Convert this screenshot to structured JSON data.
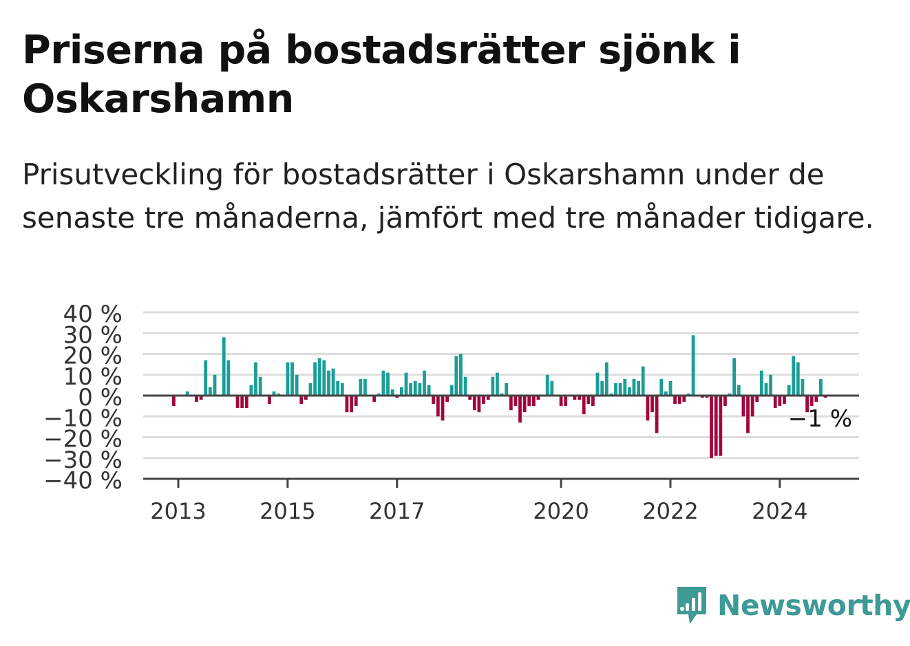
{
  "title": "Priserna på bostadsrätter sjönk i Oskarshamn",
  "subtitle": "Prisutveckling för bostadsrätter i Oskarshamn under de senaste tre månaderna, jämfört med tre månader tidigare.",
  "brand": {
    "name": "Newsworthy",
    "icon": "newsworthy-logo-icon"
  },
  "colors": {
    "positive": "#1a9e96",
    "negative": "#a0073f",
    "grid": "#dddddd",
    "axis": "#444444",
    "brand": "#3d9a95"
  },
  "chart_data": {
    "type": "bar",
    "title": "Priserna på bostadsrätter sjönk i Oskarshamn",
    "subtitle": "Prisutveckling för bostadsrätter i Oskarshamn under de senaste tre månaderna, jämfört med tre månader tidigare.",
    "xlabel": "",
    "ylabel": "",
    "ylim": [
      -40,
      40
    ],
    "y_ticks": [
      {
        "value": 40,
        "label": "40 %"
      },
      {
        "value": 30,
        "label": "30 %"
      },
      {
        "value": 20,
        "label": "20 %"
      },
      {
        "value": 10,
        "label": "10 %"
      },
      {
        "value": 0,
        "label": "0 %"
      },
      {
        "value": -10,
        "label": "−10 %"
      },
      {
        "value": -20,
        "label": "−20 %"
      },
      {
        "value": -30,
        "label": "−30 %"
      },
      {
        "value": -40,
        "label": "−40 %"
      }
    ],
    "x_ticks": [
      {
        "date": "2013-01",
        "label": "2013"
      },
      {
        "date": "2015-01",
        "label": "2015"
      },
      {
        "date": "2017-01",
        "label": "2017"
      },
      {
        "date": "2020-01",
        "label": "2020"
      },
      {
        "date": "2022-01",
        "label": "2022"
      },
      {
        "date": "2024-01",
        "label": "2024"
      }
    ],
    "grid": true,
    "legend": "none",
    "end_label": "−1 %",
    "series": [
      {
        "values": [
          {
            "x": "2012-12",
            "y": -5
          },
          {
            "x": "2013-03",
            "y": 2
          },
          {
            "x": "2013-05",
            "y": -3
          },
          {
            "x": "2013-06",
            "y": -2
          },
          {
            "x": "2013-07",
            "y": 17
          },
          {
            "x": "2013-08",
            "y": 4
          },
          {
            "x": "2013-09",
            "y": 10
          },
          {
            "x": "2013-11",
            "y": 28
          },
          {
            "x": "2013-12",
            "y": 17
          },
          {
            "x": "2014-02",
            "y": -6
          },
          {
            "x": "2014-03",
            "y": -6
          },
          {
            "x": "2014-04",
            "y": -6
          },
          {
            "x": "2014-05",
            "y": 5
          },
          {
            "x": "2014-06",
            "y": 16
          },
          {
            "x": "2014-07",
            "y": 9
          },
          {
            "x": "2014-09",
            "y": -4
          },
          {
            "x": "2014-10",
            "y": 2
          },
          {
            "x": "2014-11",
            "y": 1
          },
          {
            "x": "2015-01",
            "y": 16
          },
          {
            "x": "2015-02",
            "y": 16
          },
          {
            "x": "2015-03",
            "y": 10
          },
          {
            "x": "2015-04",
            "y": -4
          },
          {
            "x": "2015-05",
            "y": -2
          },
          {
            "x": "2015-06",
            "y": 6
          },
          {
            "x": "2015-07",
            "y": 16
          },
          {
            "x": "2015-08",
            "y": 18
          },
          {
            "x": "2015-09",
            "y": 17
          },
          {
            "x": "2015-10",
            "y": 12
          },
          {
            "x": "2015-11",
            "y": 13
          },
          {
            "x": "2015-12",
            "y": 7
          },
          {
            "x": "2016-01",
            "y": 6
          },
          {
            "x": "2016-02",
            "y": -8
          },
          {
            "x": "2016-03",
            "y": -8
          },
          {
            "x": "2016-04",
            "y": -5
          },
          {
            "x": "2016-05",
            "y": 8
          },
          {
            "x": "2016-06",
            "y": 8
          },
          {
            "x": "2016-08",
            "y": -3
          },
          {
            "x": "2016-09",
            "y": 1
          },
          {
            "x": "2016-10",
            "y": 12
          },
          {
            "x": "2016-11",
            "y": 11
          },
          {
            "x": "2016-12",
            "y": 3
          },
          {
            "x": "2017-01",
            "y": -1
          },
          {
            "x": "2017-02",
            "y": 4
          },
          {
            "x": "2017-03",
            "y": 11
          },
          {
            "x": "2017-04",
            "y": 6
          },
          {
            "x": "2017-05",
            "y": 7
          },
          {
            "x": "2017-06",
            "y": 6
          },
          {
            "x": "2017-07",
            "y": 12
          },
          {
            "x": "2017-08",
            "y": 5
          },
          {
            "x": "2017-09",
            "y": -4
          },
          {
            "x": "2017-10",
            "y": -10
          },
          {
            "x": "2017-11",
            "y": -12
          },
          {
            "x": "2017-12",
            "y": -3
          },
          {
            "x": "2018-01",
            "y": 5
          },
          {
            "x": "2018-02",
            "y": 19
          },
          {
            "x": "2018-03",
            "y": 20
          },
          {
            "x": "2018-04",
            "y": 9
          },
          {
            "x": "2018-05",
            "y": -2
          },
          {
            "x": "2018-06",
            "y": -7
          },
          {
            "x": "2018-07",
            "y": -8
          },
          {
            "x": "2018-08",
            "y": -4
          },
          {
            "x": "2018-09",
            "y": -2
          },
          {
            "x": "2018-10",
            "y": 9
          },
          {
            "x": "2018-11",
            "y": 11
          },
          {
            "x": "2018-12",
            "y": 1
          },
          {
            "x": "2019-01",
            "y": 6
          },
          {
            "x": "2019-02",
            "y": -7
          },
          {
            "x": "2019-03",
            "y": -5
          },
          {
            "x": "2019-04",
            "y": -13
          },
          {
            "x": "2019-05",
            "y": -8
          },
          {
            "x": "2019-06",
            "y": -5
          },
          {
            "x": "2019-07",
            "y": -5
          },
          {
            "x": "2019-08",
            "y": -2
          },
          {
            "x": "2019-10",
            "y": 10
          },
          {
            "x": "2019-11",
            "y": 7
          },
          {
            "x": "2020-01",
            "y": -5
          },
          {
            "x": "2020-02",
            "y": -5
          },
          {
            "x": "2020-04",
            "y": -2
          },
          {
            "x": "2020-05",
            "y": -2
          },
          {
            "x": "2020-06",
            "y": -9
          },
          {
            "x": "2020-07",
            "y": -4
          },
          {
            "x": "2020-08",
            "y": -5
          },
          {
            "x": "2020-09",
            "y": 11
          },
          {
            "x": "2020-10",
            "y": 7
          },
          {
            "x": "2020-11",
            "y": 16
          },
          {
            "x": "2020-12",
            "y": 1
          },
          {
            "x": "2021-01",
            "y": 6
          },
          {
            "x": "2021-02",
            "y": 6
          },
          {
            "x": "2021-03",
            "y": 8
          },
          {
            "x": "2021-04",
            "y": 4
          },
          {
            "x": "2021-05",
            "y": 8
          },
          {
            "x": "2021-06",
            "y": 7
          },
          {
            "x": "2021-07",
            "y": 14
          },
          {
            "x": "2021-08",
            "y": -12
          },
          {
            "x": "2021-09",
            "y": -8
          },
          {
            "x": "2021-10",
            "y": -18
          },
          {
            "x": "2021-11",
            "y": 8
          },
          {
            "x": "2021-12",
            "y": 2
          },
          {
            "x": "2022-01",
            "y": 7
          },
          {
            "x": "2022-02",
            "y": -4
          },
          {
            "x": "2022-03",
            "y": -4
          },
          {
            "x": "2022-04",
            "y": -3
          },
          {
            "x": "2022-05",
            "y": 1
          },
          {
            "x": "2022-06",
            "y": 29
          },
          {
            "x": "2022-08",
            "y": -1
          },
          {
            "x": "2022-09",
            "y": -1
          },
          {
            "x": "2022-10",
            "y": -30
          },
          {
            "x": "2022-11",
            "y": -29
          },
          {
            "x": "2022-12",
            "y": -29
          },
          {
            "x": "2023-01",
            "y": -5
          },
          {
            "x": "2023-02",
            "y": 1
          },
          {
            "x": "2023-03",
            "y": 18
          },
          {
            "x": "2023-04",
            "y": 5
          },
          {
            "x": "2023-05",
            "y": -10
          },
          {
            "x": "2023-06",
            "y": -18
          },
          {
            "x": "2023-07",
            "y": -10
          },
          {
            "x": "2023-08",
            "y": -3
          },
          {
            "x": "2023-09",
            "y": 12
          },
          {
            "x": "2023-10",
            "y": 6
          },
          {
            "x": "2023-11",
            "y": 10
          },
          {
            "x": "2023-12",
            "y": -6
          },
          {
            "x": "2024-01",
            "y": -5
          },
          {
            "x": "2024-02",
            "y": -4
          },
          {
            "x": "2024-03",
            "y": 5
          },
          {
            "x": "2024-04",
            "y": 19
          },
          {
            "x": "2024-05",
            "y": 16
          },
          {
            "x": "2024-06",
            "y": 8
          },
          {
            "x": "2024-07",
            "y": -8
          },
          {
            "x": "2024-08",
            "y": -5
          },
          {
            "x": "2024-09",
            "y": -3
          },
          {
            "x": "2024-10",
            "y": 8
          },
          {
            "x": "2024-11",
            "y": -1
          }
        ]
      }
    ]
  }
}
